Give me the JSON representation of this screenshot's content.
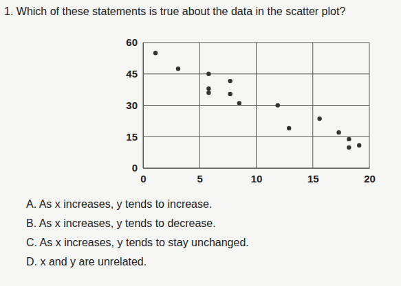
{
  "question": "1. Which of these statements is true about the data in the scatter plot?",
  "options": [
    "A. As x increases, y tends to increase.",
    "B. As x increases, y tends to decrease.",
    "C. As x increases, y tends to stay unchanged.",
    "D. x and y are unrelated."
  ],
  "chart_data": {
    "type": "scatter",
    "x": [
      1.1,
      3.1,
      5.8,
      5.8,
      5.8,
      7.7,
      7.7,
      8.5,
      11.9,
      12.9,
      15.6,
      17.3,
      18.2,
      18.2,
      19.1
    ],
    "values": [
      55,
      47.5,
      45,
      38,
      36,
      41.6,
      35.4,
      31,
      30,
      19,
      23.6,
      17,
      13.8,
      9.8,
      10.8
    ],
    "color": "#333333",
    "xlim": [
      0,
      20
    ],
    "xticks": [
      0,
      5,
      10,
      15,
      20
    ],
    "ylim": [
      0,
      60
    ],
    "yticks": [
      0,
      15,
      30,
      45,
      60
    ],
    "grid": true
  }
}
